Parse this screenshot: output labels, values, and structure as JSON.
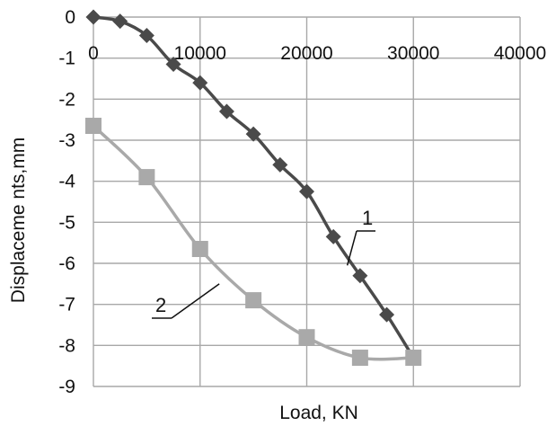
{
  "chart_data": {
    "type": "line",
    "title": "",
    "xlabel": "Load, KN",
    "ylabel": "Displaceme nts,mm",
    "xlim": [
      0,
      40000
    ],
    "ylim": [
      -9,
      0
    ],
    "x_ticks": [
      0,
      10000,
      20000,
      30000,
      40000
    ],
    "y_ticks": [
      0,
      -1,
      -2,
      -3,
      -4,
      -5,
      -6,
      -7,
      -8,
      -9
    ],
    "x_tick_labels": [
      "0",
      "10000",
      "20000",
      "30000",
      "40000"
    ],
    "y_tick_labels": [
      "0",
      "-1",
      "-2",
      "-3",
      "-4",
      "-5",
      "-6",
      "-7",
      "-8",
      "-9"
    ],
    "x_axis_position": "top",
    "grid": true,
    "legend": "none",
    "series": [
      {
        "name": "1",
        "marker": "diamond",
        "color": "#4a4a4a",
        "points": [
          [
            0,
            0
          ],
          [
            2500,
            -0.1
          ],
          [
            5000,
            -0.45
          ],
          [
            7500,
            -1.15
          ],
          [
            10000,
            -1.6
          ],
          [
            12500,
            -2.3
          ],
          [
            15000,
            -2.85
          ],
          [
            17500,
            -3.6
          ],
          [
            20000,
            -4.25
          ],
          [
            22500,
            -5.35
          ],
          [
            25000,
            -6.3
          ],
          [
            27500,
            -7.25
          ],
          [
            30000,
            -8.3
          ]
        ]
      },
      {
        "name": "2",
        "marker": "square",
        "color": "#a9a9a9",
        "points": [
          [
            0,
            -2.65
          ],
          [
            5000,
            -3.9
          ],
          [
            10000,
            -5.65
          ],
          [
            15000,
            -6.9
          ],
          [
            20000,
            -7.8
          ],
          [
            25000,
            -8.3
          ],
          [
            30000,
            -8.3
          ]
        ]
      }
    ],
    "annotations": [
      {
        "text": "1",
        "series": "1"
      },
      {
        "text": "2",
        "series": "2"
      }
    ]
  }
}
